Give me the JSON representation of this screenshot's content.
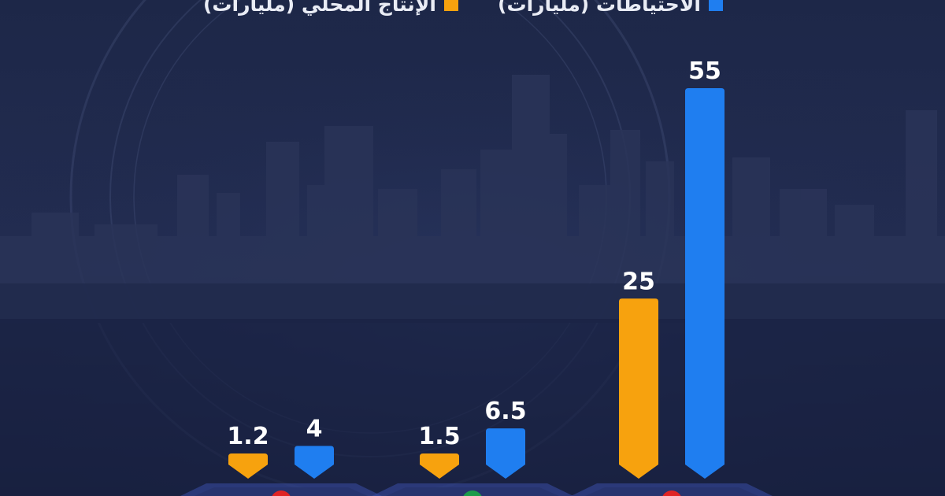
{
  "legend": [
    {
      "label": "الاحتياطات (مليارات)",
      "color": "#1f7ef0"
    },
    {
      "label": "الإنتاج المحلي (مليارات)",
      "color": "#f7a20e"
    }
  ],
  "chart_data": {
    "type": "bar",
    "categories": [
      "",
      "",
      ""
    ],
    "series": [
      {
        "values": [
          1.2,
          1.5,
          25
        ],
        "color": "#f7a20e"
      },
      {
        "values": [
          4,
          6.5,
          55
        ],
        "color": "#1f7ef0"
      }
    ],
    "data_labels": [
      [
        "1.2",
        "1.5",
        "25"
      ],
      [
        "4",
        "6.5",
        "55"
      ]
    ],
    "grid": false,
    "legend_position": "top-right",
    "base_marker_colors": [
      "#e02424",
      "#1a9c4a",
      "#e02424"
    ]
  }
}
